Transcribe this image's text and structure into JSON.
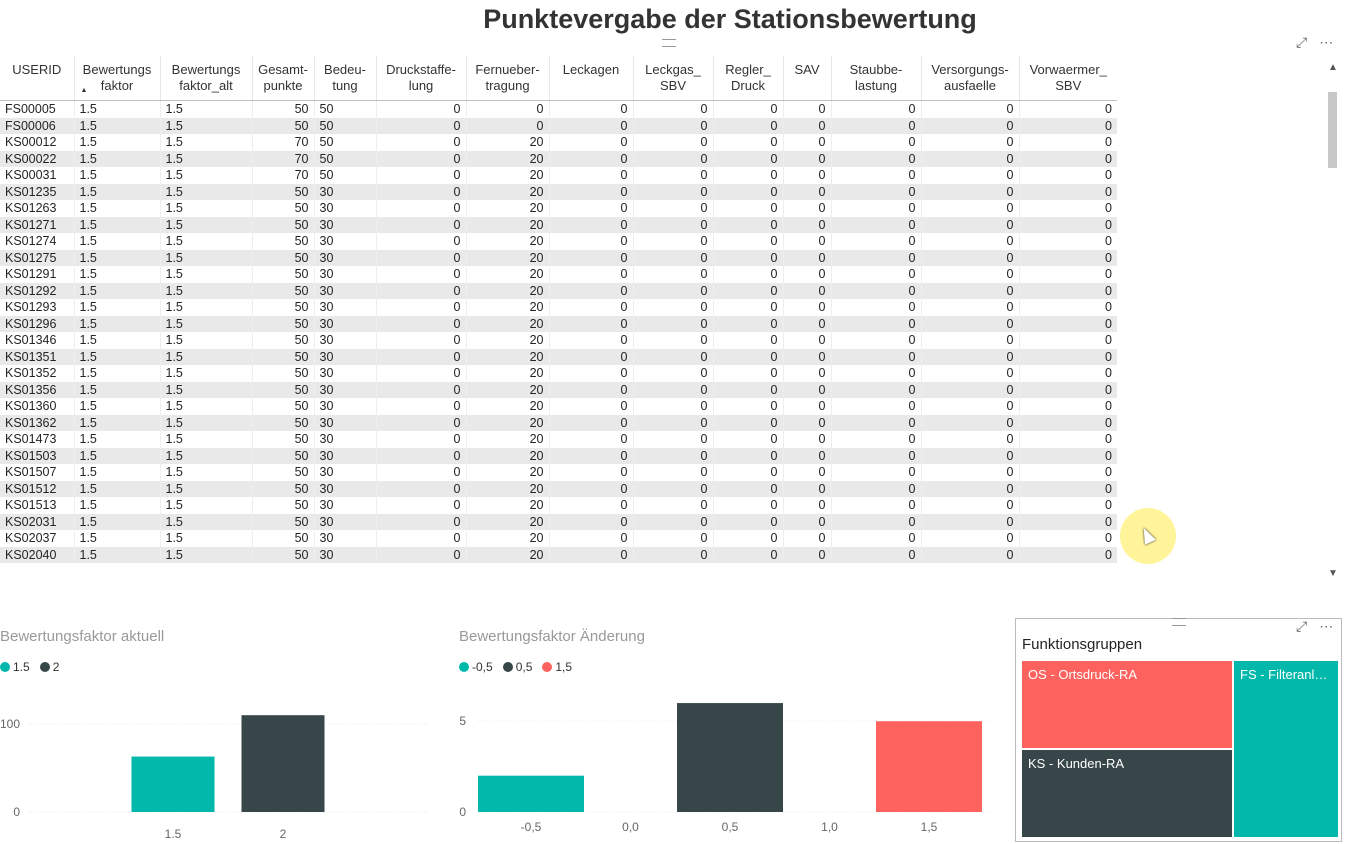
{
  "report_title": "Punktevergabe der Stationsbewertung",
  "icons": {
    "focus": "focus-mode-icon",
    "more": "more-options-icon"
  },
  "table": {
    "columns": [
      {
        "key": "userid",
        "label": "USERID",
        "align": "txt",
        "width": 74
      },
      {
        "key": "bf",
        "label": "Bewertungs faktor",
        "align": "txt",
        "width": 86
      },
      {
        "key": "bfalt",
        "label": "Bewertungs faktor_alt",
        "align": "txt",
        "width": 92
      },
      {
        "key": "ges",
        "label": "Gesamt- punkte",
        "align": "num",
        "width": 62
      },
      {
        "key": "bed",
        "label": "Bedeu- tung",
        "align": "txt",
        "width": 62
      },
      {
        "key": "druck",
        "label": "Druckstaffe- lung",
        "align": "num",
        "width": 90
      },
      {
        "key": "fern",
        "label": "Fernueber- tragung",
        "align": "num",
        "width": 83
      },
      {
        "key": "leck",
        "label": "Leckagen",
        "align": "num",
        "width": 84
      },
      {
        "key": "leckgas",
        "label": "Leckgas_ SBV",
        "align": "num",
        "width": 80
      },
      {
        "key": "regler",
        "label": "Regler_ Druck",
        "align": "num",
        "width": 70
      },
      {
        "key": "sav",
        "label": "SAV",
        "align": "num",
        "width": 48
      },
      {
        "key": "staub",
        "label": "Staubbe- lastung",
        "align": "num",
        "width": 90
      },
      {
        "key": "vers",
        "label": "Versorgungs- ausfaelle",
        "align": "num",
        "width": 98
      },
      {
        "key": "vorw",
        "label": "Vorwaermer_ SBV",
        "align": "num",
        "width": 98
      }
    ],
    "rows": [
      [
        "FS00005",
        "1.5",
        "1.5",
        "50",
        "50",
        "0",
        "0",
        "0",
        "0",
        "0",
        "0",
        "0",
        "0",
        "0"
      ],
      [
        "FS00006",
        "1.5",
        "1.5",
        "50",
        "50",
        "0",
        "0",
        "0",
        "0",
        "0",
        "0",
        "0",
        "0",
        "0"
      ],
      [
        "KS00012",
        "1.5",
        "1.5",
        "70",
        "50",
        "0",
        "20",
        "0",
        "0",
        "0",
        "0",
        "0",
        "0",
        "0"
      ],
      [
        "KS00022",
        "1.5",
        "1.5",
        "70",
        "50",
        "0",
        "20",
        "0",
        "0",
        "0",
        "0",
        "0",
        "0",
        "0"
      ],
      [
        "KS00031",
        "1.5",
        "1.5",
        "70",
        "50",
        "0",
        "20",
        "0",
        "0",
        "0",
        "0",
        "0",
        "0",
        "0"
      ],
      [
        "KS01235",
        "1.5",
        "1.5",
        "50",
        "30",
        "0",
        "20",
        "0",
        "0",
        "0",
        "0",
        "0",
        "0",
        "0"
      ],
      [
        "KS01263",
        "1.5",
        "1.5",
        "50",
        "30",
        "0",
        "20",
        "0",
        "0",
        "0",
        "0",
        "0",
        "0",
        "0"
      ],
      [
        "KS01271",
        "1.5",
        "1.5",
        "50",
        "30",
        "0",
        "20",
        "0",
        "0",
        "0",
        "0",
        "0",
        "0",
        "0"
      ],
      [
        "KS01274",
        "1.5",
        "1.5",
        "50",
        "30",
        "0",
        "20",
        "0",
        "0",
        "0",
        "0",
        "0",
        "0",
        "0"
      ],
      [
        "KS01275",
        "1.5",
        "1.5",
        "50",
        "30",
        "0",
        "20",
        "0",
        "0",
        "0",
        "0",
        "0",
        "0",
        "0"
      ],
      [
        "KS01291",
        "1.5",
        "1.5",
        "50",
        "30",
        "0",
        "20",
        "0",
        "0",
        "0",
        "0",
        "0",
        "0",
        "0"
      ],
      [
        "KS01292",
        "1.5",
        "1.5",
        "50",
        "30",
        "0",
        "20",
        "0",
        "0",
        "0",
        "0",
        "0",
        "0",
        "0"
      ],
      [
        "KS01293",
        "1.5",
        "1.5",
        "50",
        "30",
        "0",
        "20",
        "0",
        "0",
        "0",
        "0",
        "0",
        "0",
        "0"
      ],
      [
        "KS01296",
        "1.5",
        "1.5",
        "50",
        "30",
        "0",
        "20",
        "0",
        "0",
        "0",
        "0",
        "0",
        "0",
        "0"
      ],
      [
        "KS01346",
        "1.5",
        "1.5",
        "50",
        "30",
        "0",
        "20",
        "0",
        "0",
        "0",
        "0",
        "0",
        "0",
        "0"
      ],
      [
        "KS01351",
        "1.5",
        "1.5",
        "50",
        "30",
        "0",
        "20",
        "0",
        "0",
        "0",
        "0",
        "0",
        "0",
        "0"
      ],
      [
        "KS01352",
        "1.5",
        "1.5",
        "50",
        "30",
        "0",
        "20",
        "0",
        "0",
        "0",
        "0",
        "0",
        "0",
        "0"
      ],
      [
        "KS01356",
        "1.5",
        "1.5",
        "50",
        "30",
        "0",
        "20",
        "0",
        "0",
        "0",
        "0",
        "0",
        "0",
        "0"
      ],
      [
        "KS01360",
        "1.5",
        "1.5",
        "50",
        "30",
        "0",
        "20",
        "0",
        "0",
        "0",
        "0",
        "0",
        "0",
        "0"
      ],
      [
        "KS01362",
        "1.5",
        "1.5",
        "50",
        "30",
        "0",
        "20",
        "0",
        "0",
        "0",
        "0",
        "0",
        "0",
        "0"
      ],
      [
        "KS01473",
        "1.5",
        "1.5",
        "50",
        "30",
        "0",
        "20",
        "0",
        "0",
        "0",
        "0",
        "0",
        "0",
        "0"
      ],
      [
        "KS01503",
        "1.5",
        "1.5",
        "50",
        "30",
        "0",
        "20",
        "0",
        "0",
        "0",
        "0",
        "0",
        "0",
        "0"
      ],
      [
        "KS01507",
        "1.5",
        "1.5",
        "50",
        "30",
        "0",
        "20",
        "0",
        "0",
        "0",
        "0",
        "0",
        "0",
        "0"
      ],
      [
        "KS01512",
        "1.5",
        "1.5",
        "50",
        "30",
        "0",
        "20",
        "0",
        "0",
        "0",
        "0",
        "0",
        "0",
        "0"
      ],
      [
        "KS01513",
        "1.5",
        "1.5",
        "50",
        "30",
        "0",
        "20",
        "0",
        "0",
        "0",
        "0",
        "0",
        "0",
        "0"
      ],
      [
        "KS02031",
        "1.5",
        "1.5",
        "50",
        "30",
        "0",
        "20",
        "0",
        "0",
        "0",
        "0",
        "0",
        "0",
        "0"
      ],
      [
        "KS02037",
        "1.5",
        "1.5",
        "50",
        "30",
        "0",
        "20",
        "0",
        "0",
        "0",
        "0",
        "0",
        "0",
        "0"
      ],
      [
        "KS02040",
        "1.5",
        "1.5",
        "50",
        "30",
        "0",
        "20",
        "0",
        "0",
        "0",
        "0",
        "0",
        "0",
        "0"
      ]
    ]
  },
  "chart_data": [
    {
      "type": "bar",
      "title": "Bewertungsfaktor aktuell",
      "categories": [
        "1.5",
        "2"
      ],
      "values": [
        63,
        110
      ],
      "colors": [
        "#01B8AA",
        "#374649"
      ],
      "legend": [
        "1.5",
        "2"
      ],
      "yticks": [
        "0",
        "100"
      ],
      "ylim": [
        0,
        125
      ],
      "legend_position": "top-left",
      "grid": true
    },
    {
      "type": "bar",
      "title": "Bewertungsfaktor Änderung",
      "x_ticks": [
        "-0,5",
        "0,0",
        "0,5",
        "1,0",
        "1,5"
      ],
      "categories": [
        "-0,5",
        "0,5",
        "1,5"
      ],
      "values": [
        2,
        6,
        5
      ],
      "colors": [
        "#01B8AA",
        "#374649",
        "#FD625E"
      ],
      "legend": [
        "-0,5",
        "0,5",
        "1,5"
      ],
      "yticks": [
        "0",
        "5"
      ],
      "ylim": [
        0,
        6.5
      ],
      "legend_position": "top-left",
      "grid": true
    },
    {
      "type": "treemap",
      "title": "Funktionsgruppen",
      "cells": [
        {
          "label": "OS - Ortsdruck-RA",
          "color": "#FD625E"
        },
        {
          "label": "KS - Kunden-RA",
          "color": "#374649"
        },
        {
          "label": "FS - Filteranlagen",
          "color": "#01B8AA"
        }
      ]
    }
  ]
}
